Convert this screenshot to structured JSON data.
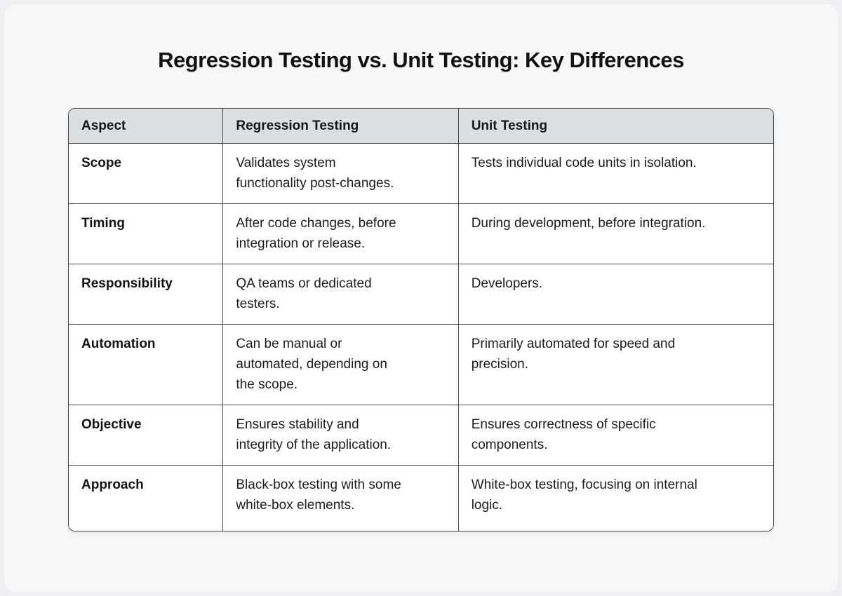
{
  "page": {
    "title": "Regression Testing vs. Unit Testing: Key Differences"
  },
  "table": {
    "headers": {
      "aspect": "Aspect",
      "regression": "Regression Testing",
      "unit": "Unit Testing"
    },
    "rows": [
      {
        "aspect": "Scope",
        "regression": "Validates system\nfunctionality post-changes.",
        "unit": "Tests individual code units in isolation."
      },
      {
        "aspect": "Timing",
        "regression": "After code changes, before\nintegration or release.",
        "unit": "During development, before integration."
      },
      {
        "aspect": "Responsibility",
        "regression": "QA teams or dedicated\ntesters.",
        "unit": "Developers."
      },
      {
        "aspect": "Automation",
        "regression": "Can be manual or\nautomated, depending on\nthe scope.",
        "unit": "Primarily automated for speed and\nprecision."
      },
      {
        "aspect": "Objective",
        "regression": "Ensures stability and\nintegrity of the application.",
        "unit": "Ensures correctness of specific\ncomponents."
      },
      {
        "aspect": "Approach",
        "regression": "Black-box testing with some\nwhite-box elements.",
        "unit": "White-box testing, focusing on internal\nlogic."
      }
    ]
  },
  "colors": {
    "page_background": "#f5f7f9",
    "header_background": "#dcdfe2",
    "table_border": "#4a4a4a",
    "cell_background": "#ffffff",
    "text": "#1c1c1e"
  }
}
